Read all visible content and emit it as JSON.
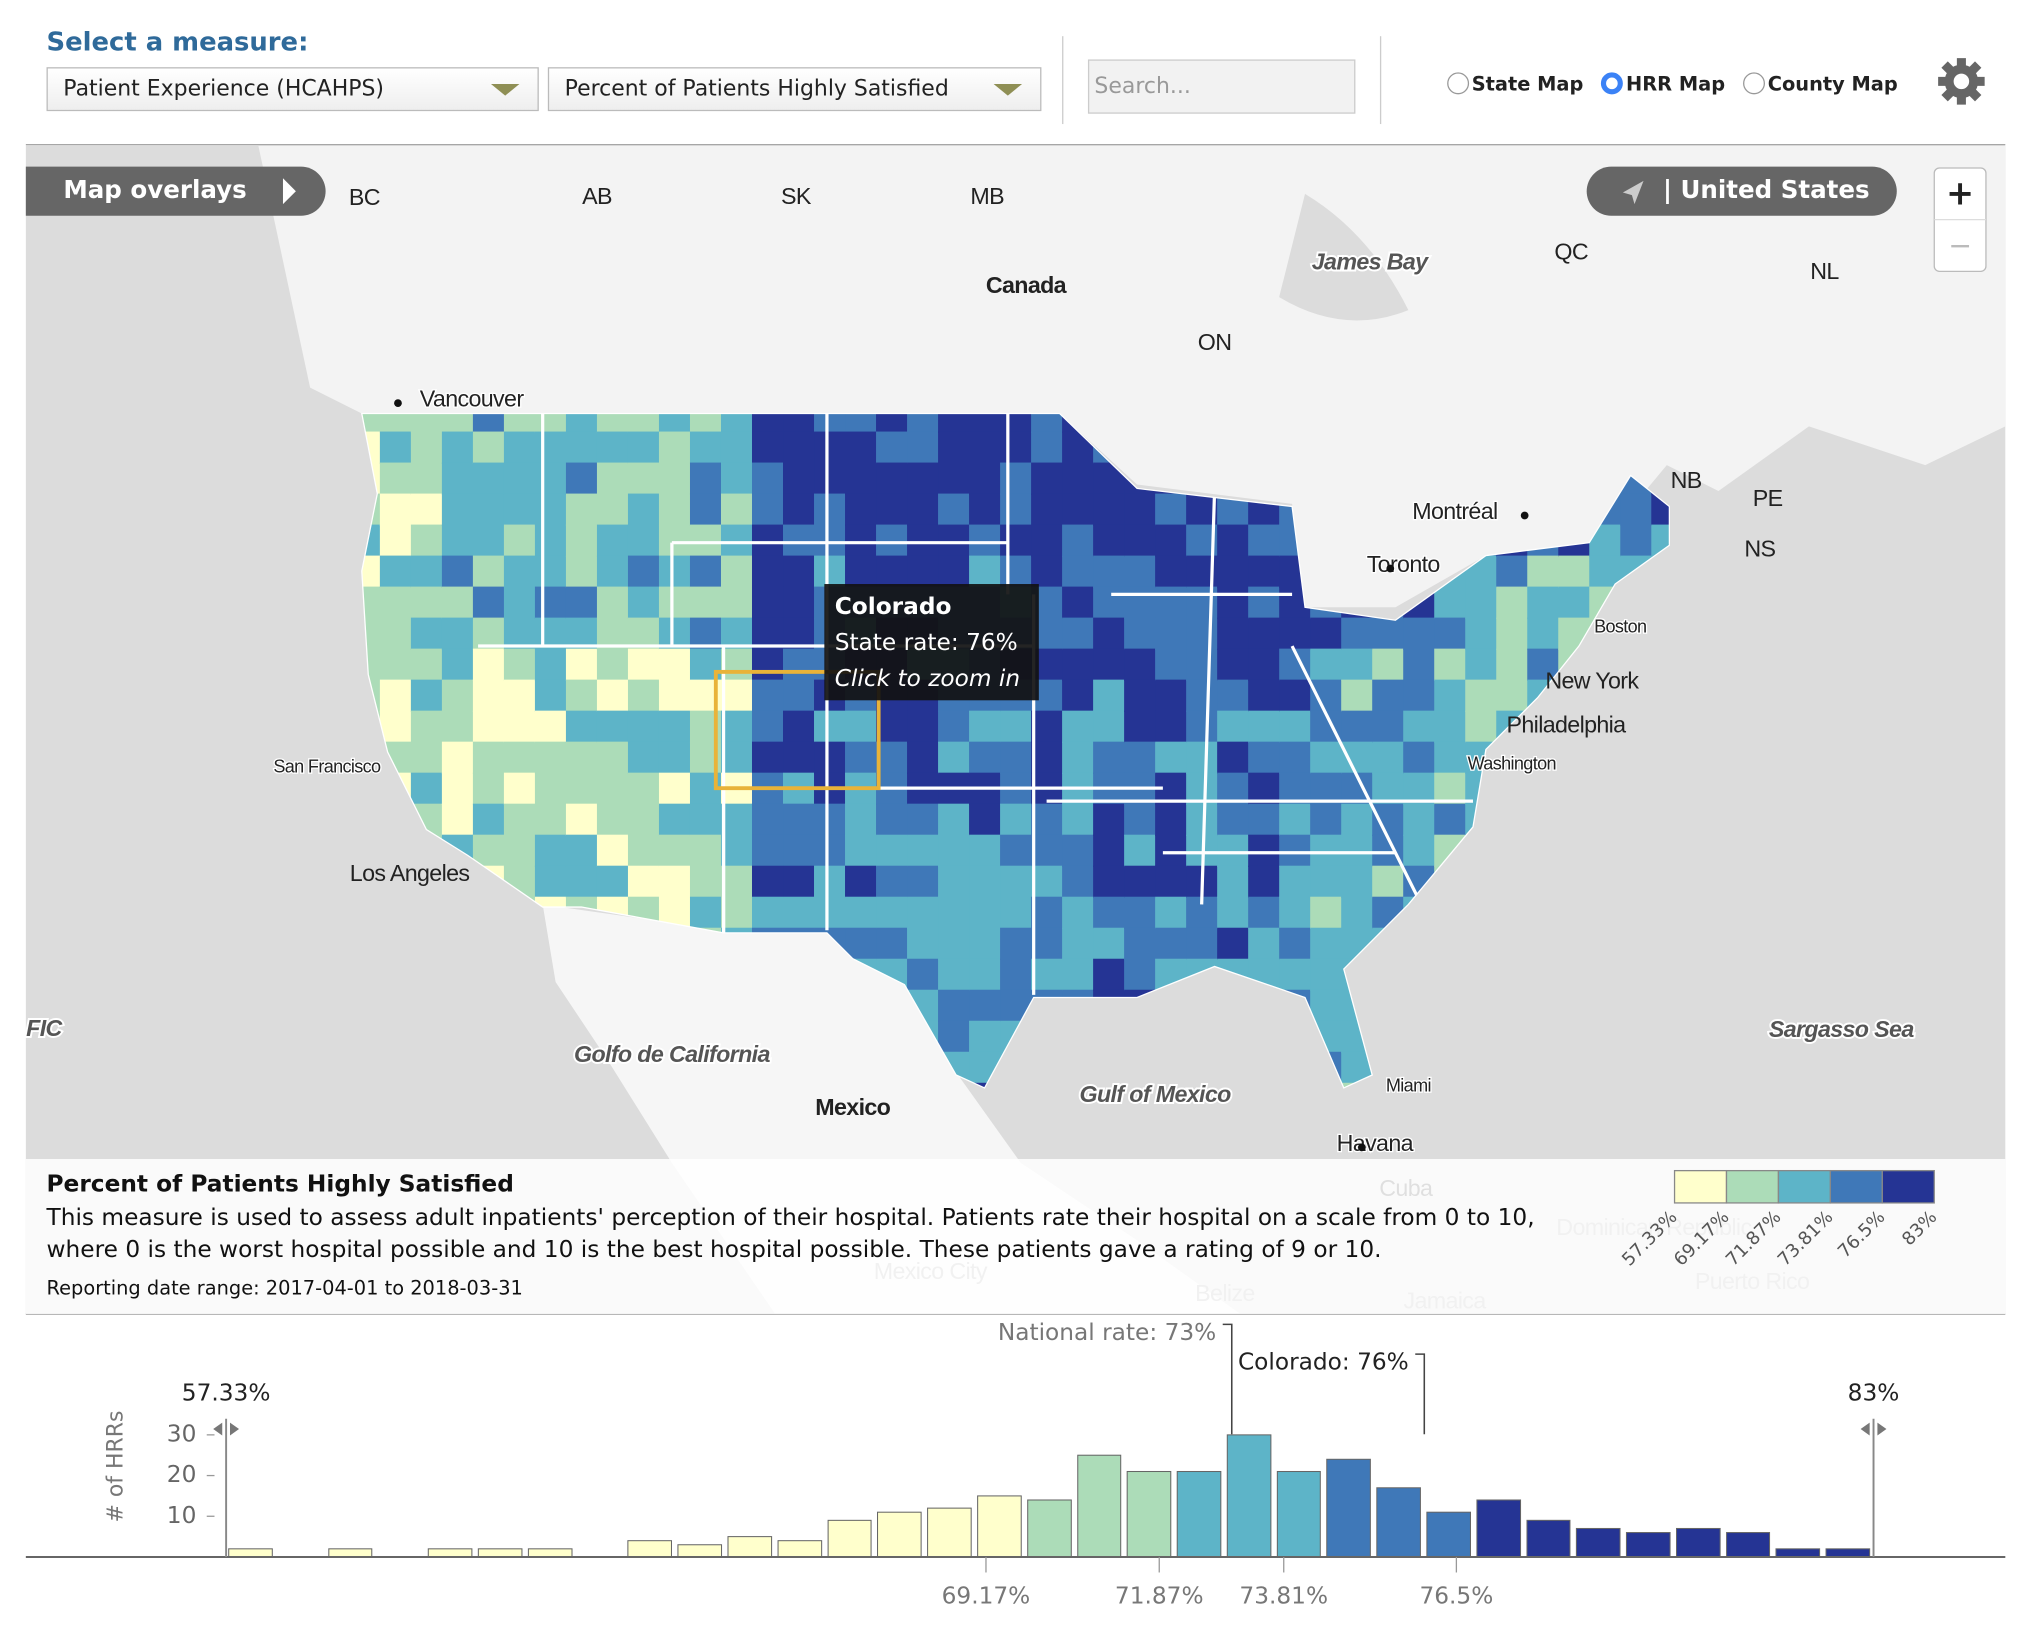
{
  "header": {
    "label": "Select a measure:",
    "measure": "Patient Experience (HCAHPS)",
    "submeasure": "Percent of Patients Highly Satisfied",
    "search_placeholder": "Search...",
    "map_options": [
      "State Map",
      "HRR Map",
      "County Map"
    ],
    "selected": 1
  },
  "map": {
    "overlays_button": "Map overlays",
    "location_button": "| United States",
    "zoom_in": "+",
    "zoom_out": "−",
    "labels": [
      "BC",
      "AB",
      "SK",
      "MB",
      "Canada",
      "James Bay",
      "QC",
      "NL",
      "ON",
      "Vancouver",
      "NB",
      "PE",
      "NS",
      "Montréal",
      "Toronto",
      "Boston",
      "New York",
      "Philadelphia",
      "Washington",
      "San Francisco",
      "Los Angeles",
      "FIC",
      "Sargasso Sea",
      "Golfo de California",
      "Mexico",
      "Gulf of Mexico",
      "Miami",
      "Havana",
      "Cuba",
      "Mexico City",
      "Belize",
      "Jamaica",
      "Dominican Republic",
      "Puerto Rico"
    ],
    "tooltip": {
      "title": "Colorado",
      "rate": "State rate: 76%",
      "hint": "Click to zoom in"
    }
  },
  "description": {
    "title": "Percent of Patients Highly Satisfied",
    "text": "This measure is used to assess adult inpatients' perception of their hospital. Patients rate their hospital on a scale from 0 to 10, where 0 is the worst hospital possible and 10 is the best hospital possible. These patients gave a rating of 9 or 10.",
    "date_range": "Reporting date range: 2017-04-01 to 2018-03-31"
  },
  "chart_data": {
    "type": "histogram",
    "ylabel": "# of HRRs",
    "bins": [
      57.33,
      58.11,
      58.89,
      59.66,
      60.44,
      61.22,
      62.0,
      62.78,
      63.55,
      64.33,
      65.11,
      65.89,
      66.67,
      67.44,
      68.22,
      69.0,
      69.78,
      70.56,
      71.33,
      72.11,
      72.89,
      73.67,
      74.44,
      75.22,
      76.0,
      76.78,
      77.56,
      78.33,
      79.11,
      79.89,
      80.67,
      81.44,
      82.22,
      83.0
    ],
    "counts": [
      2,
      0,
      2,
      0,
      2,
      2,
      2,
      0,
      4,
      3,
      5,
      4,
      9,
      11,
      12,
      15,
      14,
      25,
      21,
      21,
      30,
      21,
      24,
      17,
      11,
      14,
      9,
      7,
      6,
      7,
      6,
      2,
      2
    ],
    "xlim": [
      {
        "value": 57.33,
        "label": "57.33%"
      },
      {
        "value": 83,
        "label": "83%"
      }
    ],
    "xticks": [
      {
        "value": 69.17,
        "label": "69.17%"
      },
      {
        "value": 71.87,
        "label": "71.87%"
      },
      {
        "value": 73.81,
        "label": "73.81%"
      },
      {
        "value": 76.5,
        "label": "76.5%"
      }
    ],
    "ylim": [
      0,
      34
    ],
    "yticks": [
      10,
      20,
      30
    ],
    "annotations": [
      {
        "value": 73,
        "label": "National rate: 73%"
      },
      {
        "value": 76,
        "label": "Colorado: 76%"
      }
    ],
    "legend": {
      "thresholds": [
        {
          "value": 57.33,
          "label": "57.33%"
        },
        {
          "value": 69.17,
          "label": "69.17%"
        },
        {
          "value": 71.87,
          "label": "71.87%"
        },
        {
          "value": 73.81,
          "label": "73.81%"
        },
        {
          "value": 76.5,
          "label": "76.5%"
        },
        {
          "value": 83,
          "label": "83%"
        }
      ],
      "colors": [
        "#ffffcc",
        "#acdcb8",
        "#5db4c8",
        "#3f78b8",
        "#253494"
      ]
    }
  }
}
